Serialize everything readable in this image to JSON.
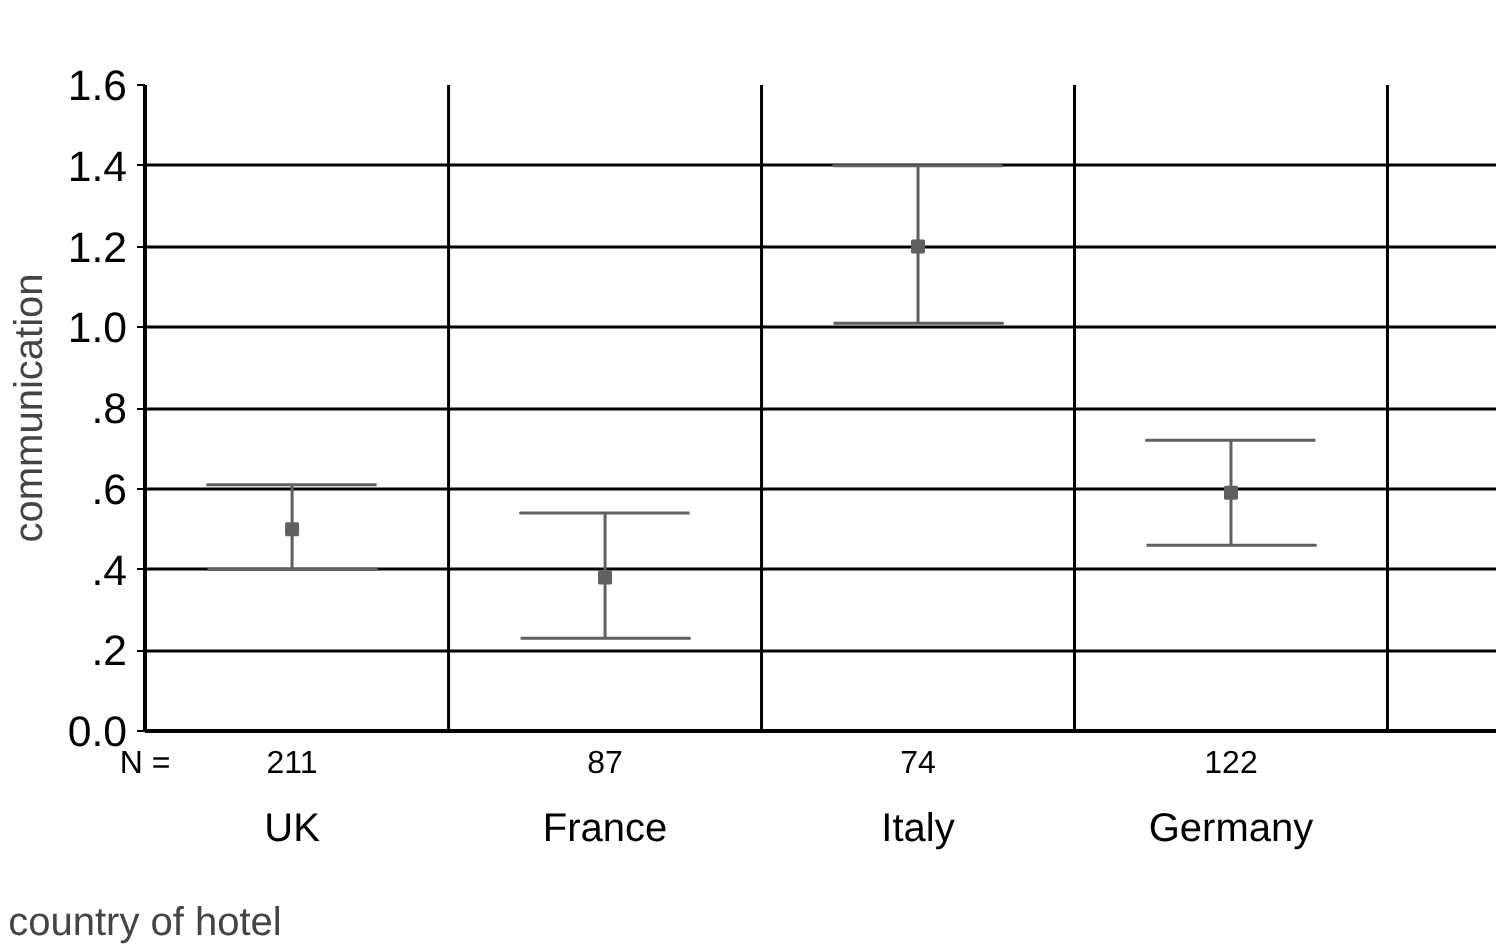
{
  "chart_data": {
    "type": "scatter",
    "ylabel": "communication",
    "xlabel": "country of hotel",
    "categories": [
      "UK",
      "France",
      "Italy",
      "Germany"
    ],
    "color": "#606060",
    "values": [
      0.5,
      0.38,
      1.2,
      0.59
    ],
    "errors": [
      [
        0.4,
        0.61
      ],
      [
        0.23,
        0.54
      ],
      [
        1.01,
        1.4
      ],
      [
        0.46,
        0.72
      ]
    ],
    "ylim": [
      0,
      1.6
    ],
    "yticks": [
      {
        "value": 0,
        "label": "0.0"
      },
      {
        "value": 0.2,
        "label": ".2"
      },
      {
        "value": 0.4,
        "label": ".4"
      },
      {
        "value": 0.6,
        "label": ".6"
      },
      {
        "value": 0.8,
        "label": ".8"
      },
      {
        "value": 1.0,
        "label": "1.0"
      },
      {
        "value": 1.2,
        "label": "1.2"
      },
      {
        "value": 1.4,
        "label": "1.4"
      },
      {
        "value": 1.6,
        "label": "1.6"
      }
    ],
    "grid": true,
    "marker": "square",
    "annotations": [
      "N =",
      "211",
      "87",
      "74",
      "122"
    ]
  }
}
